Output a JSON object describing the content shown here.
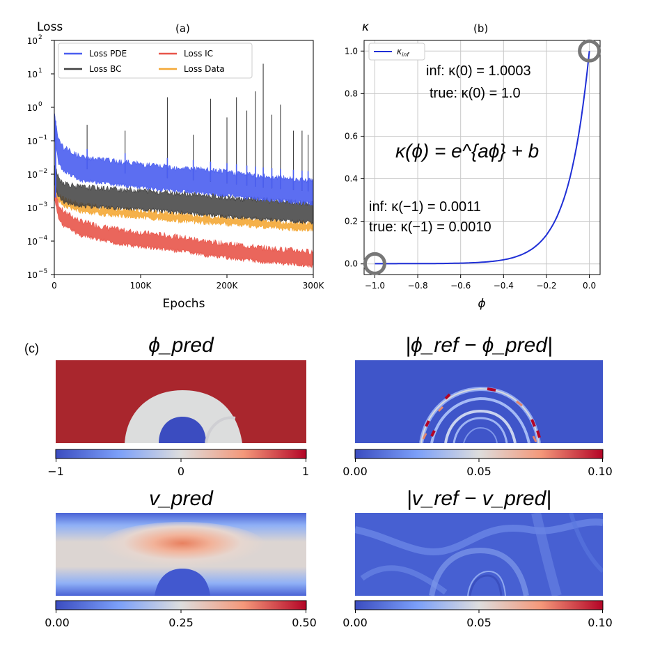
{
  "chart_data": [
    {
      "type": "line",
      "panel_label": "(a)",
      "ylabel": "Loss",
      "xlabel": "Epochs",
      "yscale": "log",
      "ylim": [
        1e-05,
        100
      ],
      "xlim": [
        0,
        300000
      ],
      "xtick_labels": [
        "0",
        "100K",
        "200K",
        "300K"
      ],
      "ytick_labels": [
        "10",
        "10",
        "10",
        "10",
        "10",
        "10",
        "10",
        "10"
      ],
      "ytick_exponents": [
        "2",
        "1",
        "0",
        "−1",
        "−2",
        "−3",
        "−4",
        "−5"
      ],
      "legend": [
        "Loss PDE",
        "Loss BC",
        "Loss IC",
        "Loss Data"
      ],
      "legend_colors": [
        "#4a5ef0",
        "#404040",
        "#e8554a",
        "#f4a836"
      ],
      "series": [
        {
          "name": "Loss PDE",
          "x": [
            0,
            5000,
            10000,
            30000,
            60000,
            90000,
            120000,
            150000,
            180000,
            210000,
            240000,
            270000,
            300000
          ],
          "values": [
            0.3,
            0.05,
            0.03,
            0.015,
            0.012,
            0.01,
            0.008,
            0.007,
            0.006,
            0.005,
            0.004,
            0.0035,
            0.003
          ]
        },
        {
          "name": "Loss BC",
          "x": [
            0,
            5000,
            10000,
            30000,
            60000,
            90000,
            120000,
            150000,
            180000,
            210000,
            240000,
            270000,
            300000
          ],
          "values": [
            0.01,
            0.004,
            0.003,
            0.0022,
            0.002,
            0.0018,
            0.0016,
            0.0014,
            0.0012,
            0.001,
            0.0009,
            0.0008,
            0.0007
          ]
        },
        {
          "name": "Loss IC",
          "x": [
            0,
            5000,
            10000,
            30000,
            60000,
            90000,
            120000,
            150000,
            180000,
            210000,
            240000,
            270000,
            300000
          ],
          "values": [
            0.003,
            0.0008,
            0.0005,
            0.00025,
            0.00016,
            0.00012,
            0.0001,
            8e-05,
            6e-05,
            5e-05,
            4e-05,
            3.5e-05,
            3e-05
          ]
        },
        {
          "name": "Loss Data",
          "x": [
            0,
            5000,
            10000,
            30000,
            60000,
            90000,
            120000,
            150000,
            180000,
            210000,
            240000,
            270000,
            300000
          ],
          "values": [
            0.005,
            0.002,
            0.0015,
            0.001,
            0.0008,
            0.0007,
            0.0006,
            0.0005,
            0.00045,
            0.0004,
            0.00035,
            0.0003,
            0.00028
          ]
        }
      ]
    },
    {
      "type": "line",
      "panel_label": "(b)",
      "ylabel": "κ",
      "xlabel": "ϕ",
      "xlim": [
        -1.05,
        0.05
      ],
      "ylim": [
        -0.05,
        1.05
      ],
      "xtick_labels": [
        "−1.0",
        "−0.8",
        "−0.6",
        "−0.4",
        "−0.2",
        "0.0"
      ],
      "ytick_labels": [
        "0.0",
        "0.2",
        "0.4",
        "0.6",
        "0.8",
        "1.0"
      ],
      "legend": [
        "κ_inf"
      ],
      "legend_base": "κ",
      "legend_sub": "inf",
      "series": [
        {
          "name": "κ_inf",
          "x": [
            -1.0,
            -0.9,
            -0.8,
            -0.7,
            -0.6,
            -0.5,
            -0.4,
            -0.3,
            -0.2,
            -0.1,
            0.0
          ],
          "values": [
            0.0011,
            0.0012,
            0.0014,
            0.0019,
            0.0033,
            0.0078,
            0.0213,
            0.063,
            0.1826,
            0.4289,
            1.0003
          ]
        }
      ],
      "annotations": {
        "top_inf": "inf: κ(0) = 1.0003",
        "top_true": "true: κ(0) = 1.0",
        "formula": "κ(ϕ) = e^{aϕ} + b",
        "bottom_inf": "inf: κ(−1) = 0.0011",
        "bottom_true": "true: κ(−1) = 0.0010"
      }
    },
    {
      "type": "heatmap",
      "panel_label": "(c)",
      "title": "ϕ_pred",
      "colormap": "coolwarm",
      "colorbar_range": [
        -1,
        1
      ],
      "colorbar_ticks": [
        "−1",
        "0",
        "1"
      ]
    },
    {
      "type": "heatmap",
      "title": "|ϕ_ref − ϕ_pred|",
      "colormap": "coolwarm",
      "colorbar_range": [
        0.0,
        0.1
      ],
      "colorbar_ticks": [
        "0.00",
        "0.05",
        "0.10"
      ]
    },
    {
      "type": "heatmap",
      "title": "v_pred",
      "colormap": "coolwarm",
      "colorbar_range": [
        0.0,
        0.5
      ],
      "colorbar_ticks": [
        "0.00",
        "0.25",
        "0.50"
      ]
    },
    {
      "type": "heatmap",
      "title": "|v_ref − v_pred|",
      "colormap": "coolwarm",
      "colorbar_range": [
        0.0,
        0.1
      ],
      "colorbar_ticks": [
        "0.00",
        "0.05",
        "0.10"
      ]
    }
  ],
  "colors": {
    "red": "#a9262d",
    "blue": "#3b4cc0",
    "light": "#dcdddd",
    "kappa_line": "#1f2fd6",
    "circle": "#777777"
  }
}
